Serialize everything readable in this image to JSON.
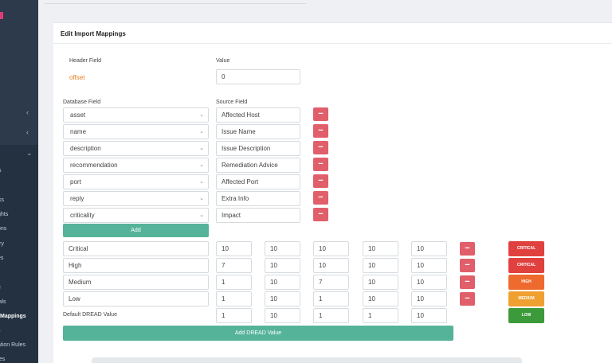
{
  "sidebar": {
    "items": [
      "s",
      "ks",
      "ghts",
      "ons",
      "ry",
      "es",
      "e",
      "ials",
      "Mappings",
      "s",
      "ation Rules",
      "tes"
    ]
  },
  "card": {
    "title": "Edit Import Mappings"
  },
  "header_field": {
    "label": "Header Field",
    "value_label": "Value",
    "field": "offset",
    "value": "0"
  },
  "database": {
    "db_label": "Database Field",
    "src_label": "Source Field",
    "rows": [
      {
        "db": "asset",
        "src": "Affected Host"
      },
      {
        "db": "name",
        "src": "Issue Name"
      },
      {
        "db": "description",
        "src": "Issue Description"
      },
      {
        "db": "recommendation",
        "src": "Remediation Advice"
      },
      {
        "db": "port",
        "src": "Affected Port"
      },
      {
        "db": "reply",
        "src": "Extra Info"
      },
      {
        "db": "criticality",
        "src": "Impact"
      }
    ],
    "add_label": "Add",
    "remove_symbol": "−"
  },
  "dread": {
    "rows": [
      {
        "name": "Critical",
        "values": [
          "10",
          "10",
          "10",
          "10",
          "10"
        ],
        "badge": "CRITICAL",
        "badge_color": "#e0413e"
      },
      {
        "name": "High",
        "values": [
          "7",
          "10",
          "10",
          "10",
          "10"
        ],
        "badge": "CRITICAL",
        "badge_color": "#e0413e"
      },
      {
        "name": "Medium",
        "values": [
          "1",
          "10",
          "7",
          "10",
          "10"
        ],
        "badge": "HIGH",
        "badge_color": "#ee6a2e"
      },
      {
        "name": "Low",
        "values": [
          "1",
          "10",
          "1",
          "10",
          "10"
        ],
        "badge": "MEDIUM",
        "badge_color": "#f0a030"
      }
    ],
    "default_label": "Default DREAD Value",
    "default_values": [
      "1",
      "10",
      "1",
      "1",
      "10"
    ],
    "default_badge": "LOW",
    "default_badge_color": "#3d9a3a",
    "add_label": "Add DREAD Value"
  }
}
